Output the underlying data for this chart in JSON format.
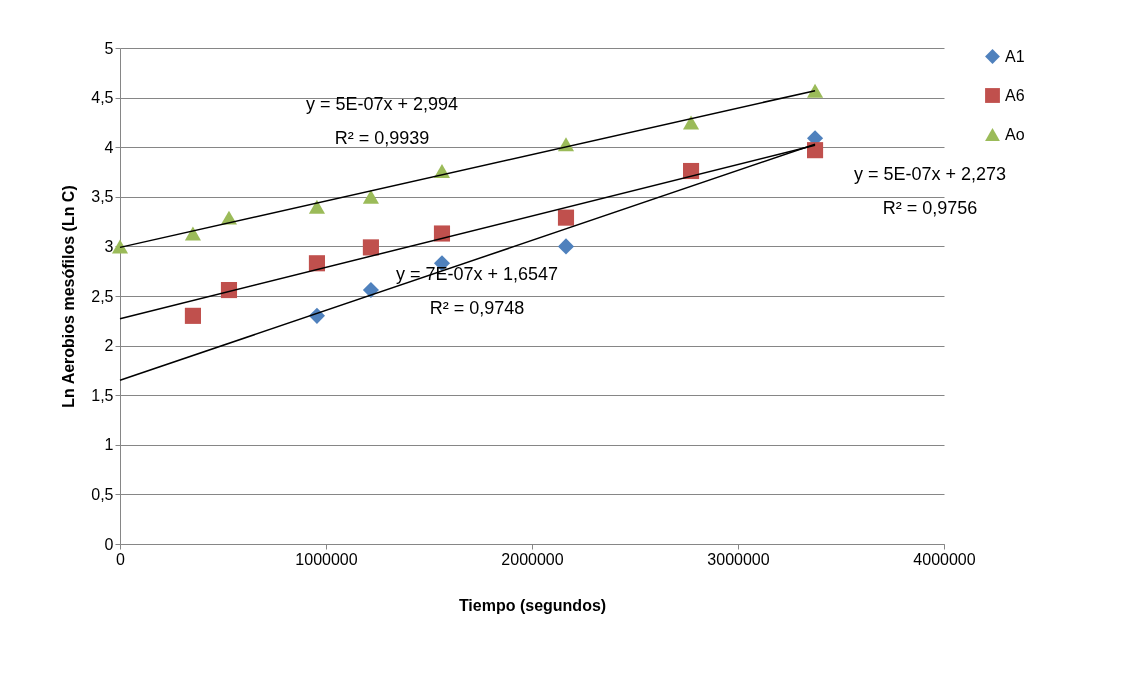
{
  "chart_data": {
    "type": "scatter",
    "xlabel": "Tiempo (segundos)",
    "ylabel": "Ln Aerobios mesófilos (Ln C)",
    "xlim": [
      0,
      4000000
    ],
    "xticks": [
      0,
      1000000,
      2000000,
      3000000,
      4000000
    ],
    "ylim": [
      0,
      5
    ],
    "yticks": [
      0,
      {
        "value": 0.5,
        "label": "0,5"
      },
      1,
      {
        "value": 1.5,
        "label": "1,5"
      },
      2,
      {
        "value": 2.5,
        "label": "2,5"
      },
      3,
      {
        "value": 3.5,
        "label": "3,5"
      },
      4,
      {
        "value": 4.5,
        "label": "4,5"
      },
      5
    ],
    "grid": "y",
    "legend": "right",
    "series": [
      {
        "name": "A1",
        "color": "#4f81bd",
        "marker": "diamond",
        "x": [
          956000,
          1218000,
          1563000,
          2165000,
          3374000
        ],
        "values": [
          2.3,
          2.56,
          2.83,
          3.0,
          4.09
        ]
      },
      {
        "name": "A6",
        "color": "#c0504d",
        "marker": "square",
        "x": [
          354000,
          529000,
          956000,
          1218000,
          1563000,
          2165000,
          2772000,
          3374000
        ],
        "values": [
          2.3,
          2.56,
          2.83,
          2.99,
          3.13,
          3.29,
          3.76,
          3.97
        ]
      },
      {
        "name": "Ao",
        "color": "#9bbb59",
        "marker": "triangle",
        "x": [
          0,
          354000,
          529000,
          956000,
          1218000,
          1563000,
          2165000,
          2772000,
          3374000
        ],
        "values": [
          3.0,
          3.13,
          3.29,
          3.4,
          3.5,
          3.76,
          4.03,
          4.25,
          4.57
        ]
      },
      {
        "type": "line",
        "color": "#000000",
        "marker": "none",
        "x": [
          0,
          3374000
        ],
        "values": [
          1.65,
          4.03
        ]
      },
      {
        "type": "line",
        "color": "#000000",
        "marker": "none",
        "x": [
          0,
          3374000
        ],
        "values": [
          2.27,
          4.02
        ]
      },
      {
        "type": "line",
        "color": "#000000",
        "marker": "none",
        "x": [
          0,
          3374000
        ],
        "values": [
          2.99,
          4.57
        ]
      }
    ],
    "annotations": [
      "y = 5E-07x + 2,994\nR² = 0,9939",
      "y = 7E-07x + 1,6547\nR² = 0,9748",
      "y = 5E-07x + 2,273\nR² = 0,9756"
    ]
  }
}
